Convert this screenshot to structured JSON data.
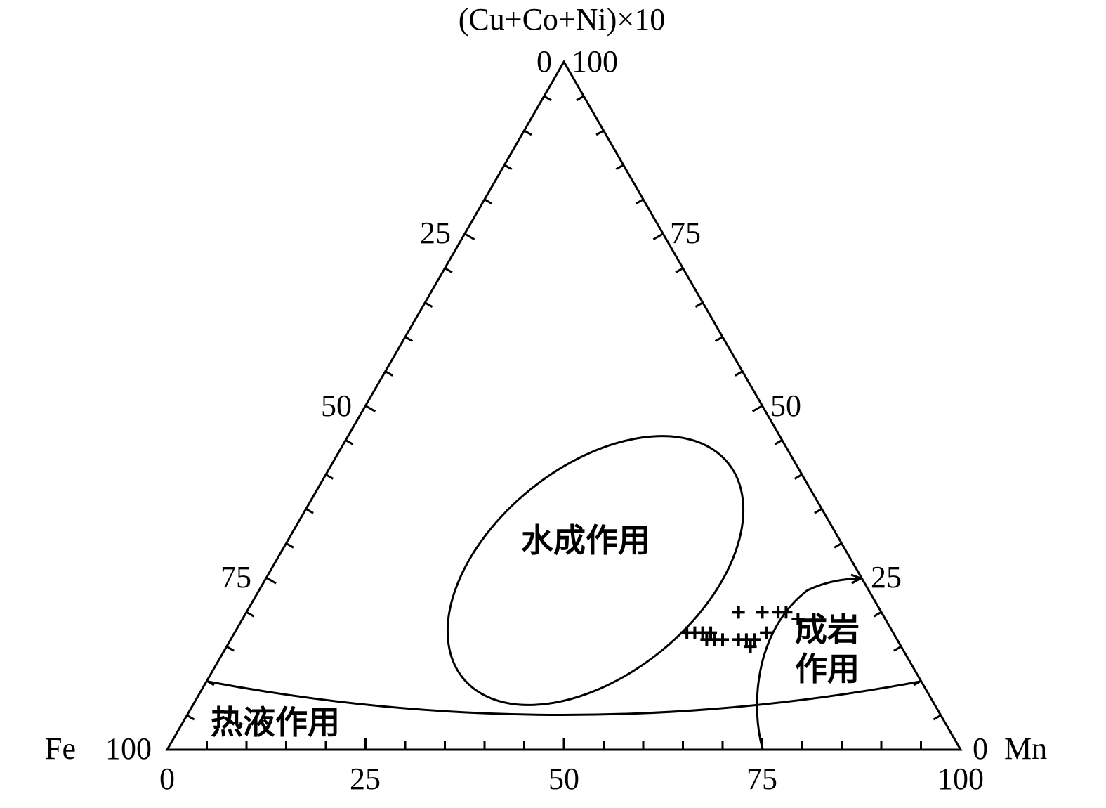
{
  "chart_data": {
    "type": "ternary",
    "title": "",
    "apex_label": "(Cu+Co+Ni)×10",
    "left_vertex": {
      "label": "Fe",
      "value_label": "100"
    },
    "right_vertex": {
      "label": "Mn",
      "value_label": "0"
    },
    "top_vertex_values": {
      "left": "0",
      "right": "100"
    },
    "axes": {
      "bottom": {
        "ticks": [
          "0",
          "25",
          "50",
          "75",
          "100"
        ],
        "variable": "Mn"
      },
      "left": {
        "ticks": [
          "25",
          "50",
          "75"
        ],
        "variable": "Fe"
      },
      "right": {
        "ticks": [
          "75",
          "50",
          "25"
        ],
        "variable": "(Cu+Co+Ni)×10"
      }
    },
    "fields": [
      {
        "name": "水成作用",
        "type": "ellipse"
      },
      {
        "name": "成岩作用",
        "type": "region",
        "lines": [
          "成岩",
          "作用"
        ]
      },
      {
        "name": "热液作用",
        "type": "region"
      }
    ],
    "points_marker": "+",
    "points": [
      {
        "mn": 57,
        "fe": 26,
        "cu": 17
      },
      {
        "mn": 58,
        "fe": 25,
        "cu": 17
      },
      {
        "mn": 59,
        "fe": 24,
        "cu": 17
      },
      {
        "mn": 60,
        "fe": 24,
        "cu": 16
      },
      {
        "mn": 61,
        "fe": 23,
        "cu": 16
      },
      {
        "mn": 59,
        "fe": 24,
        "cu": 17
      },
      {
        "mn": 60,
        "fe": 23,
        "cu": 17
      },
      {
        "mn": 62,
        "fe": 22,
        "cu": 16
      },
      {
        "mn": 66,
        "fe": 19,
        "cu": 15
      },
      {
        "mn": 65,
        "fe": 19,
        "cu": 16
      },
      {
        "mn": 64,
        "fe": 20,
        "cu": 16
      },
      {
        "mn": 66,
        "fe": 18,
        "cu": 16
      },
      {
        "mn": 67,
        "fe": 16,
        "cu": 17
      },
      {
        "mn": 62,
        "fe": 18,
        "cu": 20
      },
      {
        "mn": 62,
        "fe": 18,
        "cu": 20
      },
      {
        "mn": 65,
        "fe": 15,
        "cu": 20
      },
      {
        "mn": 65,
        "fe": 15,
        "cu": 20
      },
      {
        "mn": 67,
        "fe": 13,
        "cu": 20
      },
      {
        "mn": 68,
        "fe": 12,
        "cu": 20
      },
      {
        "mn": 70,
        "fe": 11,
        "cu": 19
      }
    ]
  }
}
